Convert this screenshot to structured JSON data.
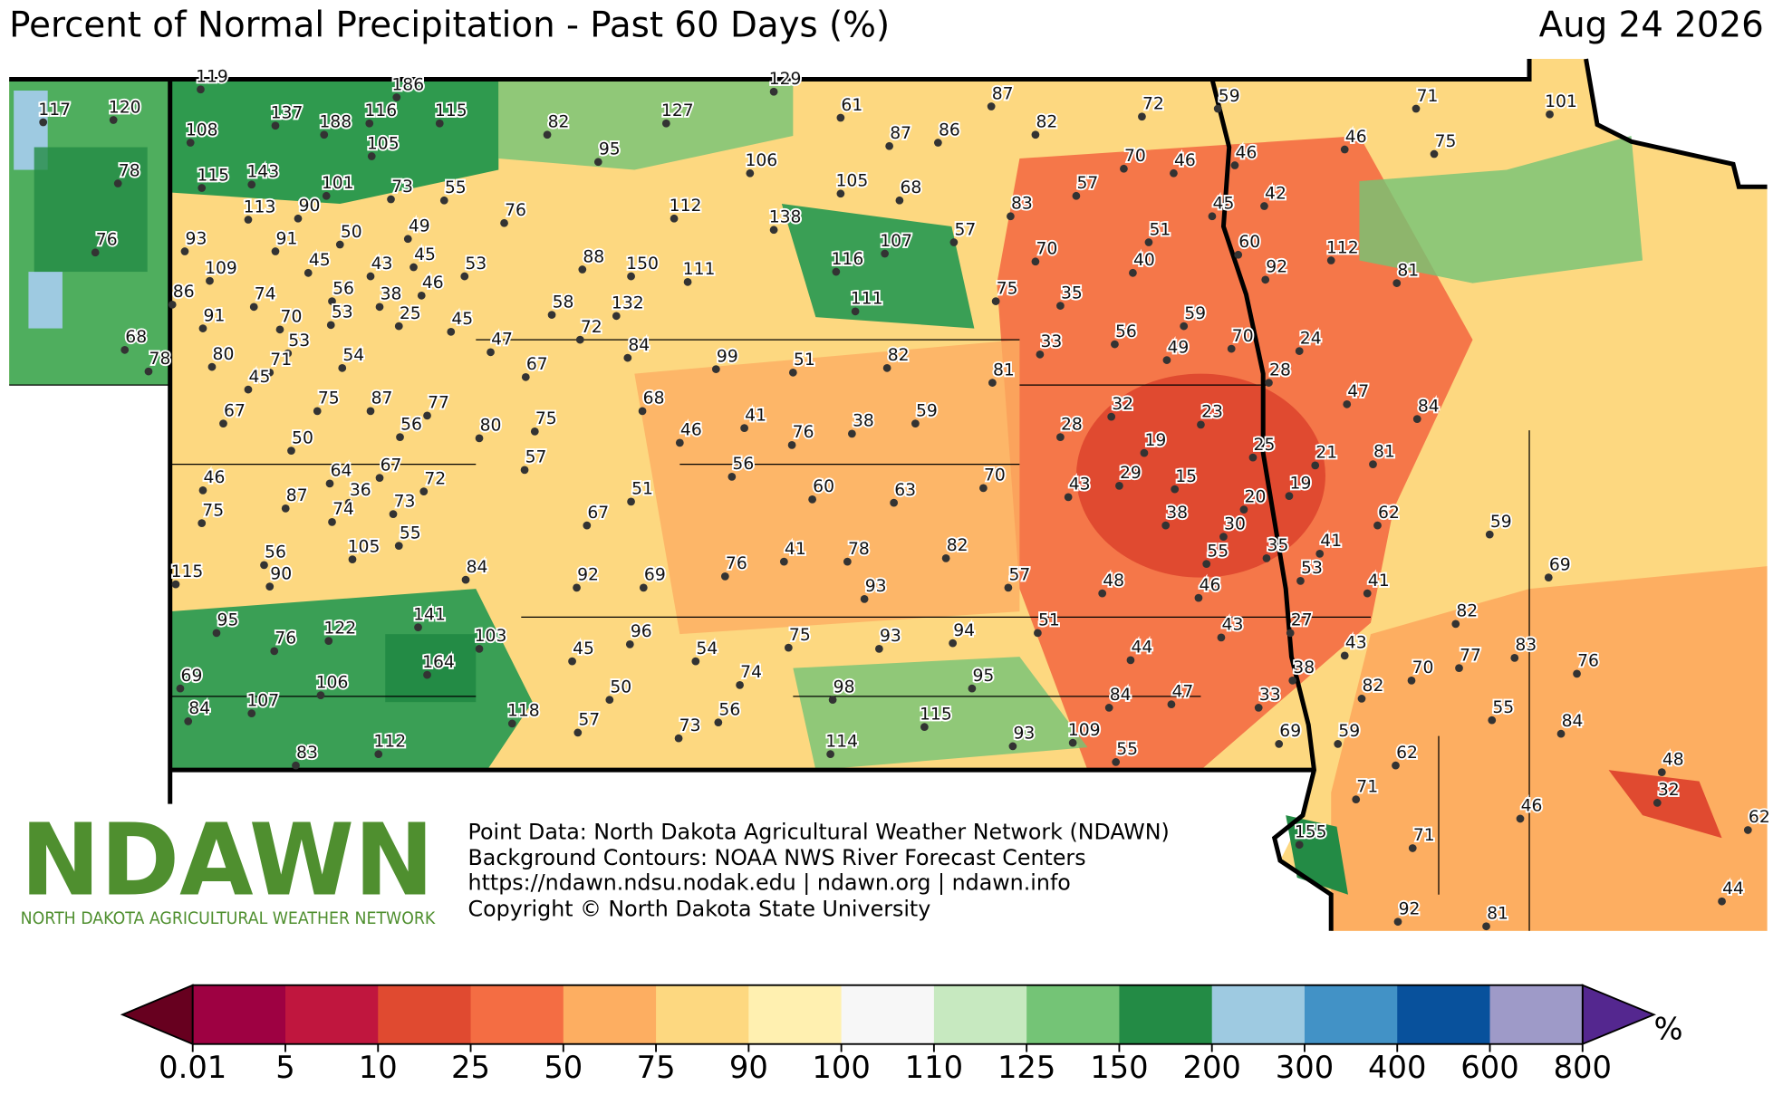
{
  "header": {
    "title": "Percent of Normal Precipitation - Past 60 Days (%)",
    "date": "Aug 24 2026"
  },
  "stations": [
    117,
    120,
    119,
    186,
    108,
    137,
    188,
    116,
    115,
    82,
    127,
    129,
    87,
    72,
    59,
    71,
    101,
    61,
    87,
    86,
    82,
    78,
    105,
    95,
    106,
    46,
    75,
    70,
    46,
    46,
    115,
    143,
    101,
    73,
    55,
    105,
    68,
    57,
    42,
    113,
    90,
    112,
    138,
    83,
    45,
    76,
    93,
    91,
    50,
    49,
    107,
    57,
    51,
    60,
    112,
    76,
    45,
    45,
    43,
    53,
    88,
    150,
    111,
    116,
    70,
    40,
    92,
    81,
    109,
    86,
    74,
    56,
    46,
    132,
    111,
    75,
    35,
    91,
    70,
    53,
    38,
    25,
    45,
    58,
    72,
    59,
    24,
    68,
    53,
    56,
    70,
    84,
    47,
    33,
    49,
    78,
    80,
    71,
    54,
    67,
    99,
    51,
    82,
    81,
    28,
    45,
    47,
    75,
    87,
    77,
    68,
    32,
    23,
    84,
    67,
    56,
    80,
    75,
    46,
    41,
    76,
    38,
    59,
    28,
    19,
    25,
    21,
    81,
    50,
    57,
    56,
    46,
    64,
    67,
    72,
    36,
    43,
    29,
    15,
    70,
    19,
    60,
    63,
    51,
    87,
    73,
    74,
    20,
    62,
    75,
    67,
    38,
    30,
    59,
    55,
    105,
    41,
    35,
    55,
    82,
    41,
    78,
    84,
    56,
    76,
    53,
    69,
    115,
    90,
    92,
    69,
    48,
    57,
    46,
    41,
    93,
    141,
    95,
    122,
    51,
    43,
    27,
    82,
    96,
    93,
    94,
    75,
    103,
    76,
    54,
    45,
    44,
    43,
    77,
    83,
    76,
    164,
    38,
    70,
    74,
    69,
    106,
    95,
    50,
    98,
    82,
    107,
    84,
    47,
    33,
    84,
    118,
    115,
    56,
    55,
    84,
    57,
    73,
    93,
    109,
    59,
    69,
    112,
    114,
    55,
    62,
    48,
    83,
    71,
    32,
    46,
    62,
    155,
    71,
    44,
    92,
    81
  ],
  "colorbar": {
    "ticks": [
      0.01,
      5,
      10,
      25,
      50,
      75,
      90,
      100,
      110,
      125,
      150,
      200,
      300,
      400,
      600,
      800
    ],
    "colors": [
      "#9e0142",
      "#c0163e",
      "#e04a30",
      "#f46d43",
      "#fdae61",
      "#fdd880",
      "#fff0b0",
      "#f7f7f7",
      "#c7e9c0",
      "#74c476",
      "#238b45",
      "#9ecae1",
      "#4292c6",
      "#08519c",
      "#9e9ac8"
    ],
    "under_color": "#67001f",
    "over_color": "#54278f",
    "unit": "%"
  },
  "logo": {
    "name": "NDAWN",
    "subtitle": "NORTH DAKOTA AGRICULTURAL WEATHER NETWORK"
  },
  "credits": [
    "Point Data: North Dakota Agricultural Weather Network (NDAWN)",
    "Background Contours: NOAA NWS River Forecast Centers",
    "https://ndawn.ndsu.nodak.edu | ndawn.org | ndawn.info",
    "Copyright © North Dakota State University"
  ]
}
